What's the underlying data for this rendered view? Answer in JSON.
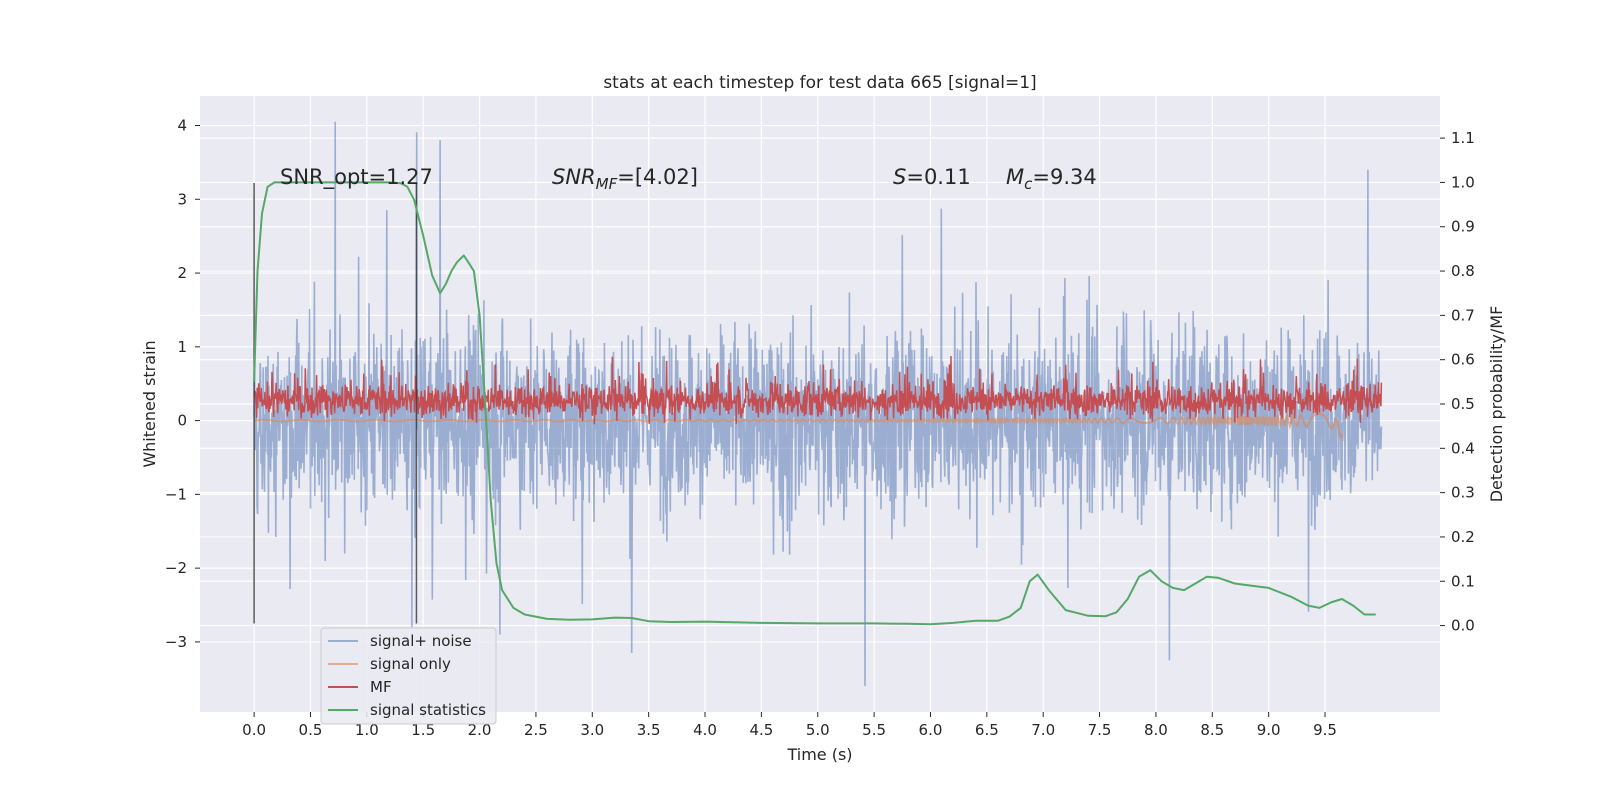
{
  "chart_data": {
    "type": "line",
    "title": "stats at each timestep for test data 665 [signal=1]",
    "xlabel": "Time (s)",
    "ylabel": "Whitened strain",
    "ylabel_right": "Detection probability/MF",
    "xlim": [
      -0.48,
      10.52
    ],
    "ylim": [
      -3.95,
      4.4
    ],
    "ylim_right": [
      -0.195,
      1.195
    ],
    "x_ticks": [
      "0.0",
      "0.5",
      "1.0",
      "1.5",
      "2.0",
      "2.5",
      "3.0",
      "3.5",
      "4.0",
      "4.5",
      "5.0",
      "5.5",
      "6.0",
      "6.5",
      "7.0",
      "7.5",
      "8.0",
      "8.5",
      "9.0",
      "9.5"
    ],
    "y_ticks": [
      "−3",
      "−2",
      "−1",
      "0",
      "1",
      "2",
      "3",
      "4"
    ],
    "y_ticks_right": [
      "0.0",
      "0.1",
      "0.2",
      "0.3",
      "0.4",
      "0.5",
      "0.6",
      "0.7",
      "0.8",
      "0.9",
      "1.0",
      "1.1"
    ],
    "grid": true,
    "legend_placement": "lower-left",
    "background": "#EAEAF2",
    "annotations": {
      "snr_opt": "SNR_opt=1.27",
      "snr_mf_base": "SNR",
      "snr_mf_sub": "MF",
      "snr_mf_rest": "=[4.02]",
      "s_base": "S",
      "s_rest": "=0.11",
      "mc_base": "M",
      "mc_sub": "c",
      "mc_rest": "=9.34"
    },
    "vlines_x": [
      0.0,
      1.44
    ],
    "series": [
      {
        "name": "signal+ noise",
        "color": "#4C72B0",
        "opacity": 0.5,
        "axis": "left",
        "description": "noisy whitened strain from 0.0 to 10.0 s, values mostly within ±2.2, peak ~4.05 near t=0.72, min ~-3.6 near t=5.42",
        "x_range": [
          0.0,
          10.0
        ],
        "spread": 1.0,
        "peaks": [
          [
            0.72,
            4.05
          ],
          [
            1.65,
            3.8
          ],
          [
            5.42,
            -3.6
          ],
          [
            8.12,
            -3.25
          ],
          [
            9.88,
            3.4
          ],
          [
            3.35,
            -3.15
          ],
          [
            2.18,
            -2.9
          ],
          [
            1.4,
            -2.8
          ]
        ]
      },
      {
        "name": "signal only",
        "color": "#DD8452",
        "opacity": 0.6,
        "axis": "left",
        "description": "near-zero signal, slight chirp growing toward t=9.6 s with dip to ~-0.2",
        "x_range": [
          0.0,
          9.65
        ]
      },
      {
        "name": "MF",
        "color": "#C44E52",
        "opacity": 1.0,
        "axis": "left",
        "description": "matched-filter output, noisy band roughly 0.0 to 0.95 centred near 0.25",
        "x_range": [
          0.0,
          10.0
        ]
      },
      {
        "name": "signal statistics",
        "color": "#55A868",
        "opacity": 1.0,
        "axis": "right",
        "x": [
          0.0,
          0.03,
          0.07,
          0.12,
          0.18,
          0.3,
          0.5,
          0.8,
          1.0,
          1.2,
          1.3,
          1.36,
          1.42,
          1.5,
          1.58,
          1.65,
          1.7,
          1.75,
          1.8,
          1.86,
          1.9,
          1.95,
          2.0,
          2.05,
          2.1,
          2.15,
          2.2,
          2.3,
          2.4,
          2.6,
          2.8,
          3.0,
          3.2,
          3.35,
          3.5,
          3.7,
          4.0,
          4.5,
          5.0,
          5.5,
          5.8,
          6.0,
          6.2,
          6.4,
          6.6,
          6.7,
          6.8,
          6.88,
          6.95,
          7.05,
          7.2,
          7.4,
          7.55,
          7.65,
          7.75,
          7.85,
          7.95,
          8.05,
          8.15,
          8.25,
          8.35,
          8.45,
          8.55,
          8.7,
          8.85,
          9.0,
          9.2,
          9.35,
          9.45,
          9.55,
          9.65,
          9.75,
          9.85,
          9.95
        ],
        "values": [
          0.55,
          0.8,
          0.93,
          0.99,
          1.0,
          1.0,
          1.0,
          1.0,
          1.0,
          1.0,
          0.998,
          0.99,
          0.96,
          0.88,
          0.79,
          0.75,
          0.77,
          0.8,
          0.82,
          0.835,
          0.82,
          0.8,
          0.7,
          0.5,
          0.28,
          0.14,
          0.08,
          0.04,
          0.025,
          0.015,
          0.013,
          0.014,
          0.018,
          0.017,
          0.01,
          0.008,
          0.009,
          0.006,
          0.005,
          0.005,
          0.004,
          0.003,
          0.006,
          0.011,
          0.011,
          0.02,
          0.04,
          0.1,
          0.115,
          0.08,
          0.035,
          0.022,
          0.021,
          0.03,
          0.06,
          0.11,
          0.125,
          0.1,
          0.085,
          0.08,
          0.095,
          0.11,
          0.108,
          0.095,
          0.09,
          0.085,
          0.065,
          0.045,
          0.04,
          0.052,
          0.06,
          0.045,
          0.025,
          0.025
        ]
      }
    ]
  }
}
